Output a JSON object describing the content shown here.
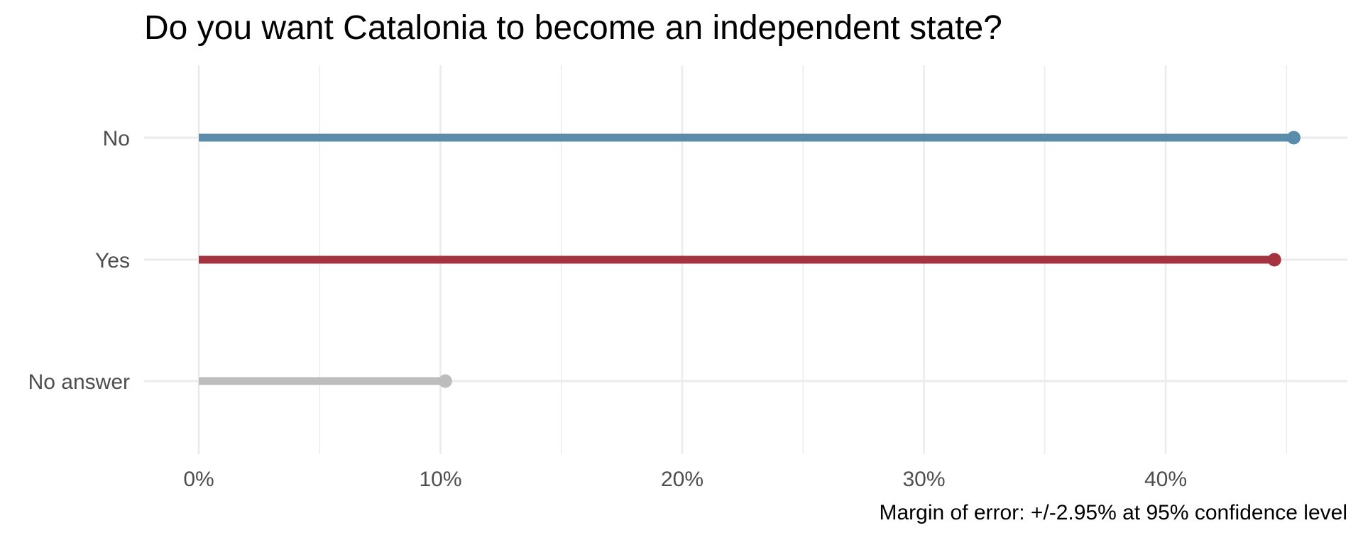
{
  "chart_data": {
    "type": "lollipop",
    "title": "Do you want Catalonia to become an independent state?",
    "caption": "Margin of error: +/-2.95% at 95% confidence level",
    "xlabel": "",
    "ylabel": "",
    "x_ticks": [
      "0%",
      "10%",
      "20%",
      "30%",
      "40%"
    ],
    "xlim": [
      0,
      47.5
    ],
    "grid": true,
    "categories": [
      "No",
      "Yes",
      "No answer"
    ],
    "values": [
      45.3,
      44.5,
      10.2
    ],
    "colors": {
      "No": "#5b8caa",
      "Yes": "#a33340",
      "No answer": "#bdbdbd"
    }
  }
}
